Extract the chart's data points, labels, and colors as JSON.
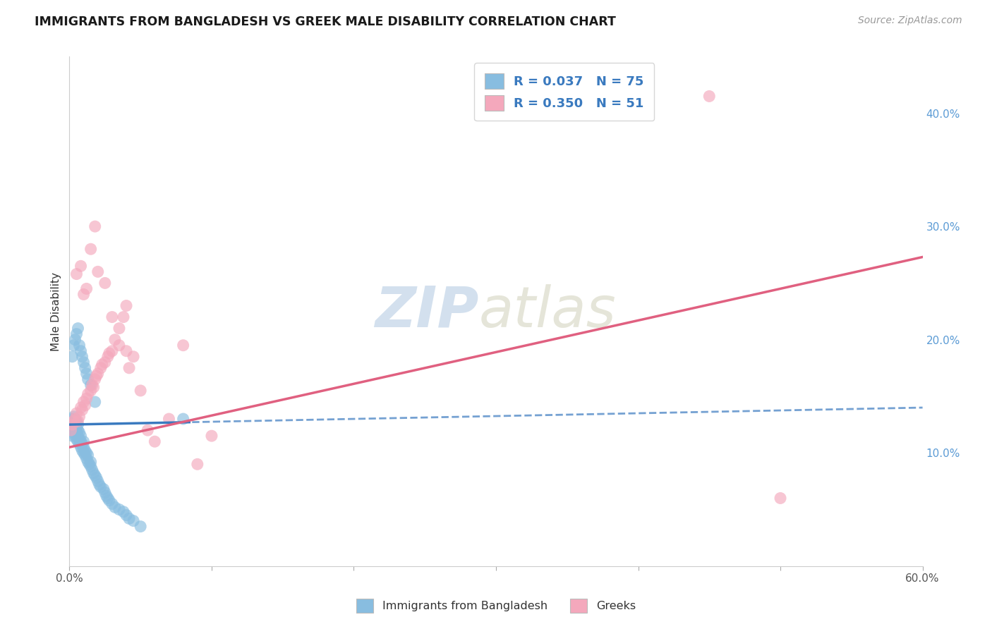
{
  "title": "IMMIGRANTS FROM BANGLADESH VS GREEK MALE DISABILITY CORRELATION CHART",
  "source": "Source: ZipAtlas.com",
  "ylabel": "Male Disability",
  "xlim": [
    0.0,
    0.6
  ],
  "ylim": [
    0.0,
    0.45
  ],
  "x_tick_positions": [
    0.0,
    0.1,
    0.2,
    0.3,
    0.4,
    0.5,
    0.6
  ],
  "x_tick_labels": [
    "0.0%",
    "",
    "",
    "",
    "",
    "",
    "60.0%"
  ],
  "y_ticks_right": [
    0.1,
    0.2,
    0.3,
    0.4
  ],
  "y_tick_labels_right": [
    "10.0%",
    "20.0%",
    "30.0%",
    "40.0%"
  ],
  "blue_color": "#88bde0",
  "pink_color": "#f4a8bc",
  "blue_line_color": "#3a7abf",
  "pink_line_color": "#e06080",
  "watermark": "ZIPatlas",
  "legend_R1": "R = 0.037",
  "legend_N1": "N = 75",
  "legend_R2": "R = 0.350",
  "legend_N2": "N = 51",
  "grid_color": "#dddddd",
  "background_color": "#ffffff",
  "blue_scatter_x": [
    0.001,
    0.002,
    0.002,
    0.002,
    0.003,
    0.003,
    0.003,
    0.003,
    0.004,
    0.004,
    0.004,
    0.004,
    0.005,
    0.005,
    0.005,
    0.005,
    0.006,
    0.006,
    0.006,
    0.006,
    0.007,
    0.007,
    0.007,
    0.008,
    0.008,
    0.008,
    0.009,
    0.009,
    0.01,
    0.01,
    0.01,
    0.011,
    0.011,
    0.012,
    0.012,
    0.013,
    0.013,
    0.014,
    0.015,
    0.015,
    0.016,
    0.017,
    0.018,
    0.019,
    0.02,
    0.021,
    0.022,
    0.024,
    0.025,
    0.026,
    0.027,
    0.028,
    0.03,
    0.032,
    0.035,
    0.038,
    0.04,
    0.042,
    0.045,
    0.05,
    0.002,
    0.003,
    0.004,
    0.005,
    0.006,
    0.007,
    0.008,
    0.009,
    0.01,
    0.011,
    0.012,
    0.013,
    0.015,
    0.018,
    0.08
  ],
  "blue_scatter_y": [
    0.12,
    0.125,
    0.115,
    0.13,
    0.118,
    0.122,
    0.128,
    0.132,
    0.115,
    0.12,
    0.125,
    0.13,
    0.112,
    0.118,
    0.122,
    0.128,
    0.11,
    0.115,
    0.12,
    0.125,
    0.108,
    0.112,
    0.118,
    0.105,
    0.11,
    0.115,
    0.102,
    0.108,
    0.1,
    0.105,
    0.11,
    0.098,
    0.102,
    0.095,
    0.1,
    0.092,
    0.098,
    0.09,
    0.088,
    0.092,
    0.085,
    0.082,
    0.08,
    0.078,
    0.075,
    0.072,
    0.07,
    0.068,
    0.065,
    0.062,
    0.06,
    0.058,
    0.055,
    0.052,
    0.05,
    0.048,
    0.045,
    0.042,
    0.04,
    0.035,
    0.185,
    0.195,
    0.2,
    0.205,
    0.21,
    0.195,
    0.19,
    0.185,
    0.18,
    0.175,
    0.17,
    0.165,
    0.16,
    0.145,
    0.13
  ],
  "pink_scatter_x": [
    0.001,
    0.002,
    0.003,
    0.004,
    0.005,
    0.006,
    0.007,
    0.008,
    0.009,
    0.01,
    0.011,
    0.012,
    0.013,
    0.015,
    0.016,
    0.017,
    0.018,
    0.019,
    0.02,
    0.022,
    0.023,
    0.025,
    0.027,
    0.028,
    0.03,
    0.032,
    0.035,
    0.038,
    0.04,
    0.042,
    0.005,
    0.008,
    0.01,
    0.012,
    0.015,
    0.018,
    0.02,
    0.025,
    0.03,
    0.035,
    0.04,
    0.045,
    0.05,
    0.055,
    0.06,
    0.07,
    0.08,
    0.45,
    0.09,
    0.1,
    0.5
  ],
  "pink_scatter_y": [
    0.12,
    0.125,
    0.128,
    0.13,
    0.135,
    0.128,
    0.132,
    0.14,
    0.138,
    0.145,
    0.142,
    0.148,
    0.152,
    0.155,
    0.16,
    0.158,
    0.165,
    0.168,
    0.17,
    0.175,
    0.178,
    0.18,
    0.185,
    0.188,
    0.19,
    0.2,
    0.21,
    0.22,
    0.23,
    0.175,
    0.258,
    0.265,
    0.24,
    0.245,
    0.28,
    0.3,
    0.26,
    0.25,
    0.22,
    0.195,
    0.19,
    0.185,
    0.155,
    0.12,
    0.11,
    0.13,
    0.195,
    0.415,
    0.09,
    0.115,
    0.06
  ]
}
